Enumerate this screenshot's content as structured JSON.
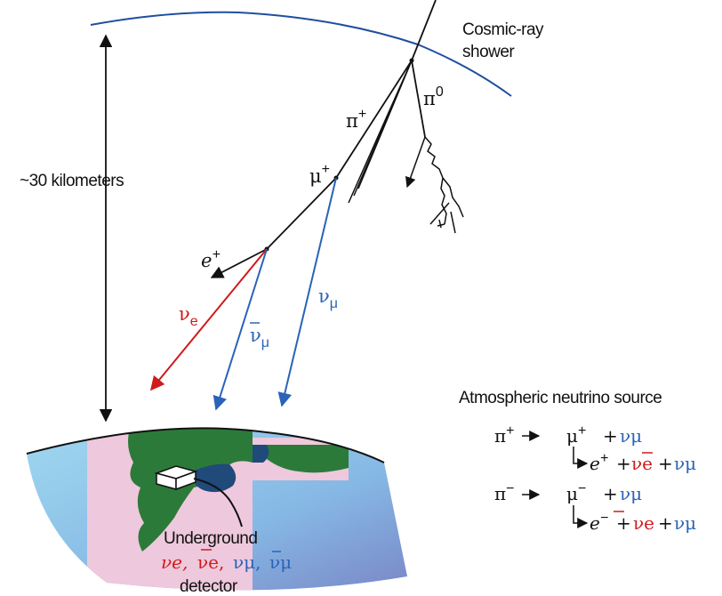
{
  "labels": {
    "shower": [
      "Cosmic-ray",
      "shower"
    ],
    "altitude": "~30 kilometers",
    "detector": [
      "Underground",
      "detector"
    ],
    "source_title": "Atmospheric neutrino source"
  },
  "particles": {
    "pi_plus": "π",
    "pi_plus_sup": "+",
    "pi_zero": "π",
    "pi_zero_sup": "0",
    "mu_plus": "μ",
    "mu_plus_sup": "+",
    "e_plus": "e",
    "e_plus_sup": "+",
    "nu_e": "ν",
    "nu_e_sub": "e",
    "nubar_mu": "ν",
    "nubar_mu_sub": "μ",
    "nu_mu": "ν",
    "nu_mu_sub": "μ"
  },
  "detector_flux": {
    "nu_e": "νe,",
    "nubar_e": "νe,",
    "nu_mu": "νμ,",
    "nubar_mu": "νμ"
  },
  "reactions": {
    "r1_left": "π",
    "r1_left_sup": "+",
    "r1_mu": "μ",
    "r1_mu_sup": "+",
    "r1_plus": "+",
    "r1_numu": "νμ",
    "r2_e": "e",
    "r2_e_sup": "+",
    "r2_plus1": "+",
    "r2_nue": "νe",
    "r2_plus2": "+",
    "r2_numu": "νμ",
    "r3_left": "π",
    "r3_left_sup": "−",
    "r3_mu": "μ",
    "r3_mu_sup": "−",
    "r3_plus": "+",
    "r3_numu": "νμ",
    "r4_e": "e",
    "r4_e_sup": "−",
    "r4_plus1": "+",
    "r4_nue": "νe",
    "r4_plus2": "+",
    "r4_numu": "νμ"
  },
  "colors": {
    "ink": "#111111",
    "atmosphere": "#1f4f9e",
    "electron_neutrino": "#d11a1a",
    "muon_neutrino": "#2a63b8",
    "ground_sky": "#8fcde8",
    "land": "#2c7a3a",
    "map_bg": "#eec8dc"
  }
}
